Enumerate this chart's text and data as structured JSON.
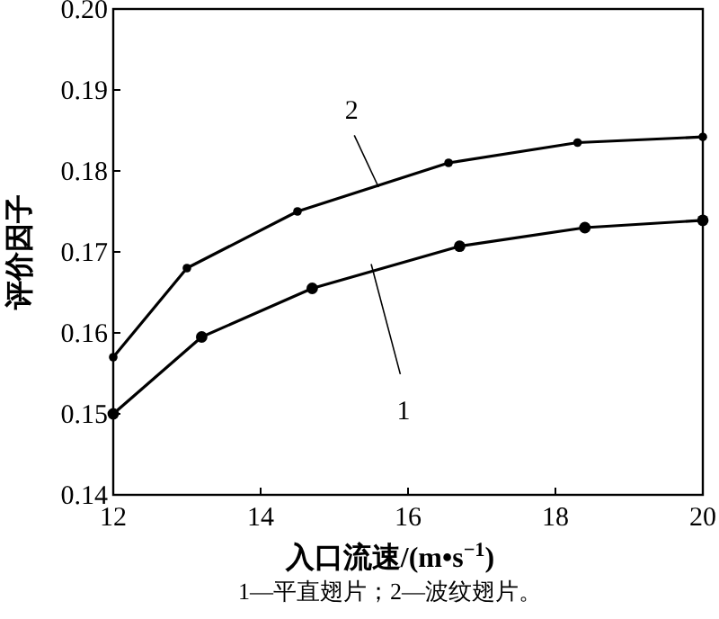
{
  "chart_data": {
    "type": "line",
    "xlabel": "入口流速/(m•s$^{−1}$)",
    "ylabel": "评价因子",
    "series": [
      {
        "color": "#000000",
        "x": [
          12,
          13.2,
          14.7,
          16.7,
          18.4,
          20
        ],
        "values": [
          0.15,
          0.1595,
          0.1655,
          0.1707,
          0.173,
          0.1739
        ]
      },
      {
        "color": "#000000",
        "x": [
          12,
          13.0,
          14.5,
          16.55,
          18.3,
          20
        ],
        "values": [
          0.157,
          0.168,
          0.175,
          0.181,
          0.1835,
          0.1842
        ]
      }
    ],
    "xlim": [
      12,
      20
    ],
    "xticks": [
      12,
      14,
      16,
      18,
      20
    ],
    "ylim": [
      0.14,
      0.2
    ],
    "yticks": [
      0.14,
      0.15,
      0.16,
      0.17,
      0.18,
      0.19,
      {
        "value": 0.2,
        "label": "0.20"
      }
    ],
    "marker": "circle",
    "line_style": "solid",
    "grid": false,
    "annotations": [
      {
        "text": "2",
        "x": 15.6,
        "y": 0.178
      },
      {
        "text": "1",
        "x": 15.5,
        "y": 0.1685
      },
      "1—平直翅片；2—波纹翅片。"
    ]
  }
}
